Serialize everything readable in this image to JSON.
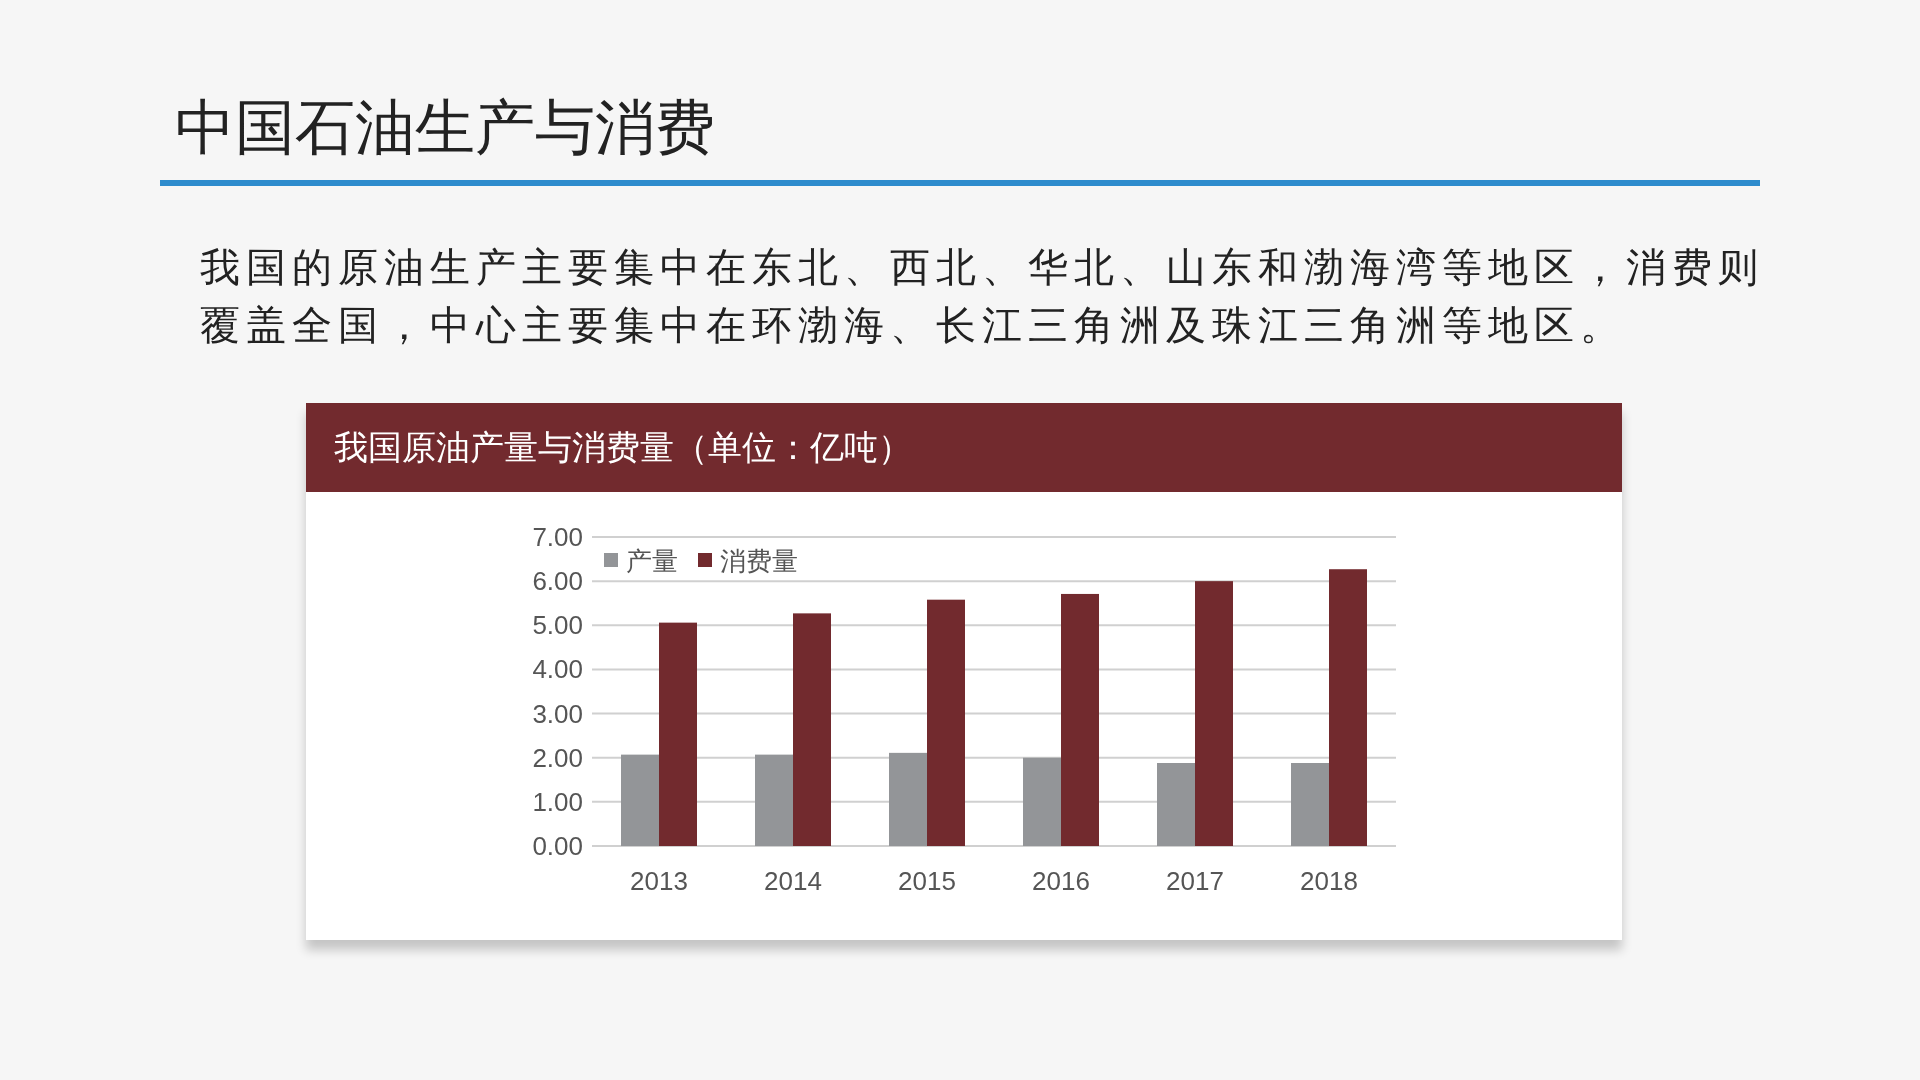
{
  "chart_data": {
    "type": "bar",
    "title": "中国石油生产与消费",
    "subtitle": "我国原油产量与消费量（单位：亿吨）",
    "annotations": [
      "我国的原油生产主要集中在东北、西北、华北、山东和渤海湾等地区，消费则覆盖全国，中心主要集中在环渤海、长江三角洲及珠江三角洲等地区。"
    ],
    "categories": [
      "2013",
      "2014",
      "2015",
      "2016",
      "2017",
      "2018"
    ],
    "series": [
      {
        "name": "产量",
        "color": "#939598",
        "values": [
          2.07,
          2.07,
          2.11,
          2.0,
          1.88,
          1.88
        ]
      },
      {
        "name": "消费量",
        "color": "#722a2e",
        "values": [
          5.06,
          5.27,
          5.58,
          5.71,
          6.0,
          6.27
        ]
      }
    ],
    "ylim": [
      0,
      7
    ],
    "yticks": [
      {
        "value": 0,
        "label": "0.00"
      },
      {
        "value": 1,
        "label": "1.00"
      },
      {
        "value": 2,
        "label": "2.00"
      },
      {
        "value": 3,
        "label": "3.00"
      },
      {
        "value": 4,
        "label": "4.00"
      },
      {
        "value": 5,
        "label": "5.00"
      },
      {
        "value": 6,
        "label": "6.00"
      },
      {
        "value": 7,
        "label": "7.00"
      }
    ],
    "grid": "y",
    "legend": "top left"
  }
}
